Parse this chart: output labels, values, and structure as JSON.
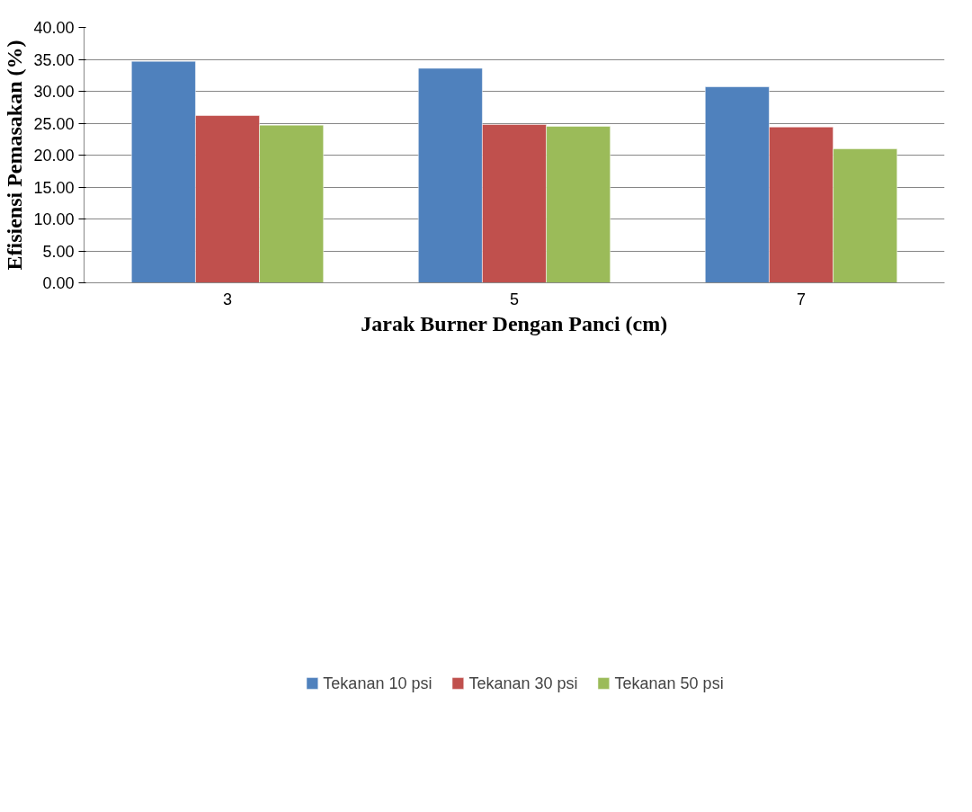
{
  "chart_data": {
    "type": "bar",
    "xlabel": "Jarak Burner Dengan Panci (cm)",
    "ylabel": "Efisiensi Pemasakan (%)",
    "categories": [
      "3",
      "5",
      "7"
    ],
    "series": [
      {
        "name": "Tekanan 10 psi",
        "color": "#4f81bd",
        "values": [
          34.7,
          33.6,
          30.7
        ]
      },
      {
        "name": "Tekanan 30 psi",
        "color": "#c0504d",
        "values": [
          26.2,
          24.8,
          24.4
        ]
      },
      {
        "name": "Tekanan 50 psi",
        "color": "#9bbb59",
        "values": [
          24.7,
          24.5,
          21.0
        ]
      }
    ],
    "ylim": [
      0,
      40
    ],
    "yticks": [
      {
        "value": 0,
        "label": "0.00"
      },
      {
        "value": 5,
        "label": "5.00"
      },
      {
        "value": 10,
        "label": "10.00"
      },
      {
        "value": 15,
        "label": "15.00"
      },
      {
        "value": 20,
        "label": "20.00"
      },
      {
        "value": 25,
        "label": "25.00"
      },
      {
        "value": 30,
        "label": "30.00"
      },
      {
        "value": 35,
        "label": "35.00"
      },
      {
        "value": 40,
        "label": "40.00"
      }
    ],
    "grid": "y",
    "legend": "bottom"
  }
}
